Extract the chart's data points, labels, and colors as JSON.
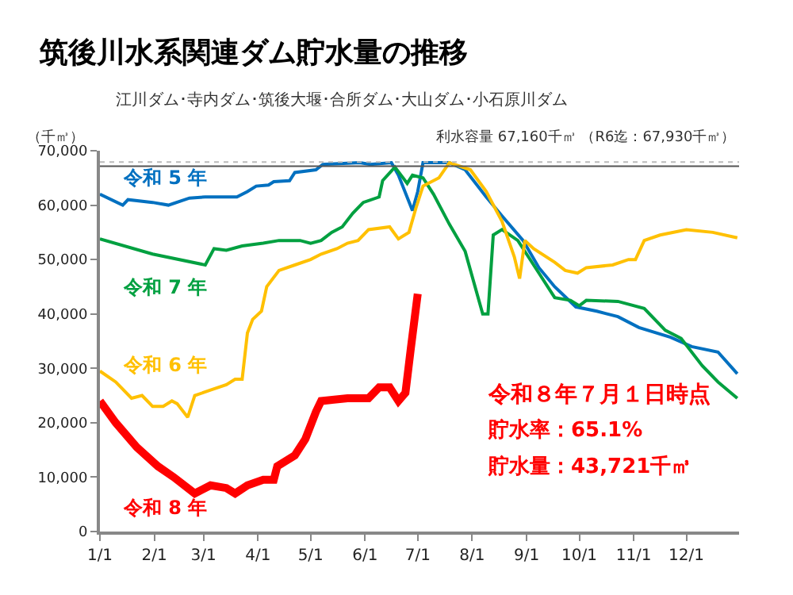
{
  "chart_data": {
    "type": "line",
    "title": "筑後川水系関連ダム貯水量の推移",
    "subtitle": "江川ダム･寺内ダム･筑後大堰･合所ダム･大山ダム･小石原川ダム",
    "ylabel": "（千㎥）",
    "legend": false,
    "grid": false,
    "marker": "none",
    "line_style": "solid",
    "xlim": [
      "--01-01",
      "--12-31"
    ],
    "xticks": [
      {
        "value": "--01-01",
        "label": "1/1"
      },
      {
        "value": "--02-01",
        "label": "2/1"
      },
      {
        "value": "--03-01",
        "label": "3/1"
      },
      {
        "value": "--04-01",
        "label": "4/1"
      },
      {
        "value": "--05-01",
        "label": "5/1"
      },
      {
        "value": "--06-01",
        "label": "6/1"
      },
      {
        "value": "--07-01",
        "label": "7/1"
      },
      {
        "value": "--08-01",
        "label": "8/1"
      },
      {
        "value": "--09-01",
        "label": "9/1"
      },
      {
        "value": "--10-01",
        "label": "10/1"
      },
      {
        "value": "--11-01",
        "label": "11/1"
      },
      {
        "value": "--12-01",
        "label": "12/1"
      }
    ],
    "ylim": [
      0,
      70000
    ],
    "yticks": [
      {
        "value": 0,
        "label": "0"
      },
      {
        "value": 10000,
        "label": "10,000"
      },
      {
        "value": 20000,
        "label": "20,000"
      },
      {
        "value": 30000,
        "label": "30,000"
      },
      {
        "value": 40000,
        "label": "40,000"
      },
      {
        "value": 50000,
        "label": "50,000"
      },
      {
        "value": 60000,
        "label": "60,000"
      },
      {
        "value": 70000,
        "label": "70,000"
      }
    ],
    "ref_lines": [
      {
        "axis": "y",
        "value": 67160,
        "color": "#555555",
        "line_style": "solid",
        "label": "利水容量 67,160千㎥ （R6迄：67,930千㎥）"
      },
      {
        "axis": "y",
        "value": 67930,
        "color": "#bbbbbb",
        "line_style": "dotted"
      }
    ],
    "series": [
      {
        "name": "令和 5 年",
        "color": "#0070c0",
        "x": [
          "--01-01",
          "--01-14",
          "--01-17",
          "--01-31",
          "--02-09",
          "--02-21",
          "--03-02",
          "--03-20",
          "--03-26",
          "--03-31",
          "--04-07",
          "--04-10",
          "--04-19",
          "--04-22",
          "--05-04",
          "--05-08",
          "--05-29",
          "--06-04",
          "--06-16",
          "--06-20",
          "--06-28",
          "--07-01",
          "--07-04",
          "--07-19",
          "--07-28",
          "--08-09",
          "--08-18",
          "--08-30",
          "--09-08",
          "--09-17",
          "--09-29",
          "--10-11",
          "--10-23",
          "--11-04",
          "--11-22",
          "--12-04",
          "--12-19",
          "--12-30"
        ],
        "values": [
          62000,
          60000,
          61000,
          60500,
          60000,
          61300,
          61500,
          61500,
          62500,
          63500,
          63700,
          64300,
          64500,
          66000,
          66500,
          67500,
          67800,
          67500,
          67800,
          65500,
          59000,
          62500,
          67800,
          67800,
          66500,
          61500,
          58000,
          53500,
          48500,
          45000,
          41300,
          40500,
          39500,
          37500,
          35700,
          34000,
          33000,
          29000
        ]
      },
      {
        "name": "令和 7 年",
        "color": "#00a040",
        "x": [
          "--01-01",
          "--01-31",
          "--03-02",
          "--03-07",
          "--03-14",
          "--03-23",
          "--04-04",
          "--04-13",
          "--04-25",
          "--05-01",
          "--05-07",
          "--05-13",
          "--05-19",
          "--05-25",
          "--05-31",
          "--06-09",
          "--06-11",
          "--06-18",
          "--06-25",
          "--06-28",
          "--07-04",
          "--07-10",
          "--07-19",
          "--07-28",
          "--08-07",
          "--08-10",
          "--08-13",
          "--08-18",
          "--08-27",
          "--09-08",
          "--09-17",
          "--09-26",
          "--10-01",
          "--10-05",
          "--10-23",
          "--11-07",
          "--11-19",
          "--11-28",
          "--12-10",
          "--12-19",
          "--12-30"
        ],
        "values": [
          53800,
          51000,
          49000,
          52000,
          51700,
          52500,
          53000,
          53500,
          53500,
          53000,
          53500,
          55000,
          56000,
          58500,
          60500,
          61500,
          64500,
          67000,
          64000,
          65500,
          65000,
          62000,
          56500,
          51500,
          40000,
          40000,
          54500,
          55500,
          53500,
          47500,
          43000,
          42500,
          41500,
          42500,
          42300,
          41000,
          37000,
          35500,
          30500,
          27500,
          24500
        ]
      },
      {
        "name": "令和 6 年",
        "color": "#ffc000",
        "x": [
          "--01-01",
          "--01-10",
          "--01-19",
          "--01-25",
          "--01-31",
          "--02-06",
          "--02-11",
          "--02-14",
          "--02-20",
          "--02-24",
          "--03-05",
          "--03-14",
          "--03-19",
          "--03-23",
          "--03-26",
          "--03-29",
          "--04-03",
          "--04-06",
          "--04-13",
          "--04-22",
          "--05-01",
          "--05-07",
          "--05-16",
          "--05-22",
          "--05-28",
          "--06-03",
          "--06-15",
          "--06-20",
          "--06-26",
          "--06-30",
          "--07-04",
          "--07-13",
          "--07-19",
          "--07-31",
          "--08-09",
          "--08-18",
          "--08-25",
          "--08-28",
          "--08-31",
          "--09-05",
          "--09-17",
          "--09-23",
          "--09-30",
          "--10-05",
          "--10-20",
          "--10-29",
          "--11-02",
          "--11-07",
          "--11-16",
          "--12-01",
          "--12-16",
          "--12-30"
        ],
        "values": [
          29500,
          27500,
          24500,
          25000,
          23000,
          23000,
          24000,
          23500,
          21000,
          25000,
          26000,
          27000,
          28000,
          28000,
          36500,
          39000,
          40500,
          45000,
          48000,
          49000,
          50000,
          51000,
          52000,
          53000,
          53500,
          55500,
          56000,
          53800,
          55000,
          59500,
          63500,
          65000,
          67800,
          66500,
          62500,
          57000,
          50500,
          46500,
          53500,
          52000,
          49500,
          48000,
          47500,
          48500,
          49000,
          50000,
          50000,
          53500,
          54500,
          55500,
          55000,
          54000
        ]
      },
      {
        "name": "令和 8 年",
        "color": "#ff0000",
        "x": [
          "--01-01",
          "--01-10",
          "--01-22",
          "--02-03",
          "--02-12",
          "--02-24",
          "--03-05",
          "--03-14",
          "--03-19",
          "--03-26",
          "--04-04",
          "--04-10",
          "--04-12",
          "--04-22",
          "--04-28",
          "--05-04",
          "--05-07",
          "--05-22",
          "--06-03",
          "--06-09",
          "--06-15",
          "--06-20",
          "--06-24",
          "--06-27",
          "--07-01"
        ],
        "values": [
          24000,
          20000,
          15500,
          12000,
          10000,
          7000,
          8500,
          8000,
          7000,
          8500,
          9500,
          9500,
          12000,
          14000,
          17000,
          22000,
          24000,
          24500,
          24500,
          26500,
          26500,
          24000,
          25500,
          33500,
          43700
        ]
      }
    ],
    "annotations": [
      "令和８年７月１日時点",
      "貯水率：65.1%",
      "貯水量：43,721千㎥"
    ]
  }
}
